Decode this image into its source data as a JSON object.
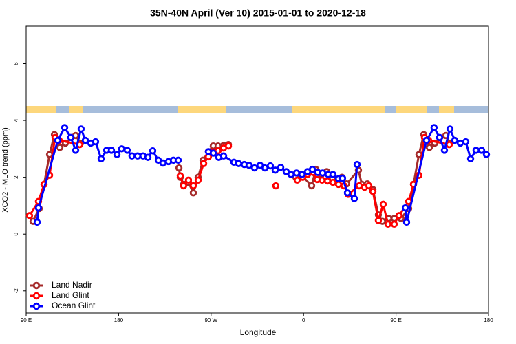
{
  "chart_data": {
    "type": "line",
    "title": "35N-40N April (Ver 10)   2015-01-01 to 2020-12-18",
    "x_label": "Longitude",
    "y_label": "XCO2 - MLO trend (ppm)",
    "xlim": [
      90,
      540
    ],
    "xticks": [
      {
        "value": 90,
        "label": "90 E"
      },
      180,
      {
        "value": 270,
        "label": "90 W"
      },
      {
        "value": 360,
        "label": "0"
      },
      {
        "value": 450,
        "label": "90 E"
      },
      {
        "value": 540,
        "label": "180"
      }
    ],
    "ylim": [
      -2.78,
      7.32
    ],
    "yticks": [
      -2,
      0,
      2,
      4,
      6
    ],
    "legend": "bottom-left",
    "series": [
      {
        "name": "Land Nadir",
        "color": "#a52a2a",
        "x": [
          96.7,
          102.7,
          107.4,
          112.8,
          117.5,
          122.8,
          128.2,
          138.2,
          142.9,
          null,
          238.7,
          240,
          243.3,
          248,
          252.7,
          257.4,
          262.1,
          267.4,
          272.1,
          276.8,
          282.2,
          286.9,
          null,
          352.5,
          357.2,
          367.9,
          371.9,
          377.3,
          382.6,
          388,
          392.7,
          397.4,
          402,
          413.4,
          416.8,
          422.1,
          427.5,
          432.8,
          436.8,
          442.9,
          448.2,
          454.9,
          462.3,
          467,
          472.3,
          477,
          482.4,
          487.7,
          498.5,
          502.5
        ],
        "values": [
          0.45,
          0.9,
          1.75,
          2.8,
          3.5,
          3.05,
          3.2,
          3.47,
          3.2,
          null,
          2.33,
          2.0,
          1.75,
          1.82,
          1.45,
          2.0,
          2.6,
          2.9,
          3.1,
          3.1,
          3.12,
          3.15,
          null,
          2.0,
          2.1,
          1.7,
          2.28,
          2.1,
          2.2,
          1.97,
          1.82,
          2.0,
          1.77,
          2.25,
          1.75,
          1.77,
          1.57,
          0.68,
          0.45,
          0.55,
          0.55,
          0.55,
          0.9,
          1.75,
          2.8,
          3.5,
          3.05,
          3.2,
          3.47,
          3.2
        ]
      },
      {
        "name": "Land Glint",
        "color": "#ff0000",
        "x": [
          93.3,
          102,
          107.4,
          112.8,
          118.1,
          122.1,
          142.2,
          null,
          240,
          243.3,
          248,
          252.7,
          257.4,
          262.8,
          267.4,
          272.1,
          276.8,
          282.2,
          286.9,
          null,
          333,
          null,
          353.8,
          359.2,
          363.9,
          369.2,
          373.2,
          378,
          383.3,
          388.6,
          394,
          399.4,
          403.4,
          414.1,
          419.4,
          423.5,
          427.5,
          432.8,
          437.5,
          442.2,
          448.2,
          452.9,
          462.3,
          467,
          472.3,
          477.7,
          481.7,
          501.8
        ],
        "values": [
          0.65,
          1.15,
          1.75,
          2.07,
          3.4,
          3.3,
          3.15,
          null,
          2.05,
          1.7,
          1.9,
          1.7,
          1.9,
          2.48,
          2.72,
          2.9,
          2.93,
          3.03,
          3.1,
          null,
          1.7,
          null,
          1.9,
          2.0,
          2.1,
          2.17,
          1.92,
          1.9,
          1.87,
          1.82,
          1.75,
          1.7,
          1.4,
          1.7,
          1.65,
          1.7,
          1.5,
          0.48,
          1.05,
          0.35,
          0.35,
          0.65,
          1.15,
          1.75,
          2.07,
          3.4,
          3.3,
          3.15
        ]
      },
      {
        "name": "Ocean Glint",
        "color": "#0000ff",
        "x": [
          100.7,
          102,
          120.8,
          127.5,
          133.5,
          138.2,
          143.5,
          147.6,
          152.9,
          157.6,
          163,
          168.3,
          173,
          178.4,
          183,
          188.4,
          193,
          198.5,
          203.8,
          208.5,
          213.2,
          218.6,
          223.2,
          228.6,
          233.3,
          238,
          null,
          267.4,
          272.1,
          277.5,
          282.2,
          292.2,
          296.9,
          302.3,
          307,
          312.3,
          317.7,
          322.4,
          327.7,
          332.4,
          337.8,
          343.1,
          347.8,
          353.2,
          358.5,
          363.9,
          368.6,
          373.9,
          378.6,
          384,
          388.6,
          394,
          398,
          402.7,
          409.4,
          412.1,
          null,
          459,
          460.3,
          479.7,
          487,
          492.4,
          497.1,
          502.5,
          507.2,
          512.5,
          517.9,
          522.6,
          527.9,
          533.3,
          538
        ],
        "values": [
          0.42,
          0.92,
          3.3,
          3.75,
          3.4,
          2.95,
          3.7,
          3.3,
          3.2,
          3.25,
          2.65,
          2.95,
          2.95,
          2.8,
          3.0,
          2.95,
          2.75,
          2.75,
          2.75,
          2.7,
          2.93,
          2.6,
          2.5,
          2.55,
          2.6,
          2.6,
          null,
          2.9,
          2.85,
          2.7,
          2.75,
          2.53,
          2.48,
          2.45,
          2.42,
          2.33,
          2.42,
          2.33,
          2.4,
          2.25,
          2.35,
          2.2,
          2.1,
          2.15,
          2.1,
          2.2,
          2.28,
          2.17,
          2.15,
          2.1,
          2.1,
          1.95,
          1.97,
          1.45,
          1.25,
          2.45,
          null,
          0.92,
          0.42,
          3.3,
          3.75,
          3.4,
          2.95,
          3.7,
          3.3,
          3.2,
          3.25,
          2.65,
          2.95,
          2.95,
          2.8
        ]
      }
    ]
  }
}
